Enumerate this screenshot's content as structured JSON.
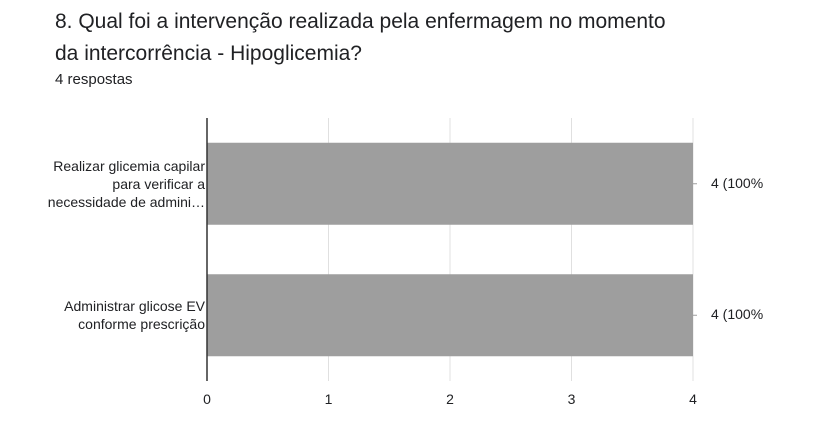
{
  "question": {
    "title_line1": "8. Qual foi a intervenção realizada pela enfermagem no momento",
    "title_line2": "da intercorrência - Hipoglicemia?",
    "responses": "4 respostas"
  },
  "chart_data": {
    "type": "bar",
    "orientation": "horizontal",
    "categories": [
      [
        "Realizar glicemia capilar",
        "para verificar a",
        "necessidade de admini…"
      ],
      [
        "Administrar glicose EV",
        "conforme prescrição"
      ]
    ],
    "values": [
      4,
      4
    ],
    "value_labels": [
      "4 (100%",
      "4 (100%"
    ],
    "xlim": [
      0,
      4
    ],
    "xticks": [
      "0",
      "1",
      "2",
      "3",
      "4"
    ],
    "bar_color": "#9e9e9e",
    "grid": true
  }
}
